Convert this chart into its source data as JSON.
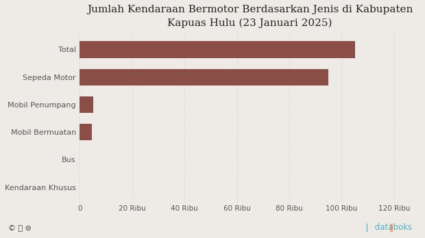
{
  "title": "Jumlah Kendaraan Bermotor Berdasarkan Jenis di Kabupaten\nKapuas Hulu (23 Januari 2025)",
  "categories": [
    "Kendaraan Khusus",
    "Bus",
    "Mobil Bermuatan",
    "Mobil Penumpang",
    "Sepeda Motor",
    "Total"
  ],
  "values": [
    0,
    0,
    4500,
    5200,
    95000,
    105000
  ],
  "bar_color": "#8B4E47",
  "background_color": "#eeebe6",
  "xlim": [
    0,
    130000
  ],
  "xtick_values": [
    0,
    20000,
    40000,
    60000,
    80000,
    100000,
    120000
  ],
  "xtick_labels": [
    "0",
    "20 Ribu",
    "40 Ribu",
    "60 Ribu",
    "80 Ribu",
    "100 Ribu",
    "120 Ribu"
  ],
  "title_fontsize": 11,
  "label_fontsize": 8,
  "tick_fontsize": 7.5,
  "footer_left": "© ⓘ ⊜",
  "footer_right": "databoks",
  "bar_height": 0.6
}
